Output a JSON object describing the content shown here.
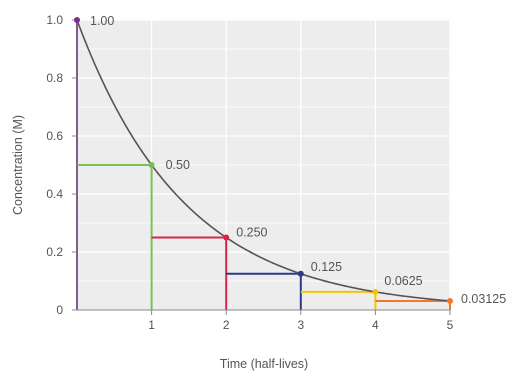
{
  "chart_data": {
    "type": "line",
    "title": "",
    "xlabel": "Time (half-lives)",
    "ylabel": "Concentration (M)",
    "xlim": [
      0,
      5
    ],
    "ylim": [
      0,
      1.0
    ],
    "grid": true,
    "x_ticks": [
      "1",
      "2",
      "3",
      "4",
      "5"
    ],
    "y_ticks": [
      "0",
      "0.2",
      "0.4",
      "0.6",
      "0.8",
      "1.0"
    ],
    "y_tick_values": [
      0,
      0.2,
      0.4,
      0.6,
      0.8,
      1.0
    ],
    "x_tick_values": [
      1,
      2,
      3,
      4,
      5
    ],
    "curve": {
      "function": "exponential_decay",
      "initial": 1.0,
      "color": "#555555"
    },
    "points": [
      {
        "x": 0,
        "y": 1.0,
        "label": "1.00",
        "color": "#7b2d8e"
      },
      {
        "x": 1,
        "y": 0.5,
        "label": "0.50",
        "color": "#7cc150"
      },
      {
        "x": 2,
        "y": 0.25,
        "label": "0.250",
        "color": "#d9254a"
      },
      {
        "x": 3,
        "y": 0.125,
        "label": "0.125",
        "color": "#2b3a8a"
      },
      {
        "x": 4,
        "y": 0.0625,
        "label": "0.0625",
        "color": "#f5c400"
      },
      {
        "x": 5,
        "y": 0.03125,
        "label": "0.03125",
        "color": "#f07a28"
      }
    ]
  }
}
